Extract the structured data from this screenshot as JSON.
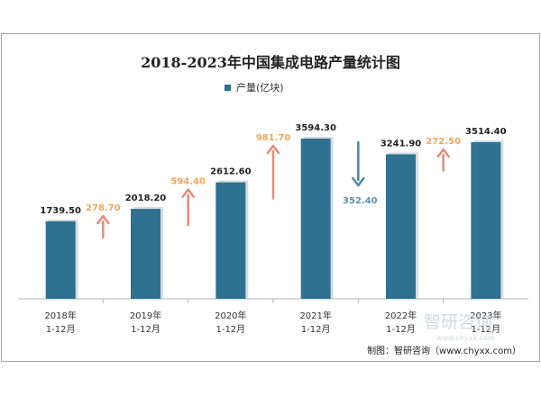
{
  "chart_data": {
    "type": "bar",
    "title": "2018-2023年中国集成电路产量统计图",
    "legend": {
      "label": "产量(亿块)",
      "position": "top-center"
    },
    "categories": [
      [
        "2018年",
        "1-12月"
      ],
      [
        "2019年",
        "1-12月"
      ],
      [
        "2020年",
        "1-12月"
      ],
      [
        "2021年",
        "1-12月"
      ],
      [
        "2022年",
        "1-12月"
      ],
      [
        "2023年",
        "1-12月"
      ]
    ],
    "series": [
      {
        "name": "产量(亿块)",
        "values": [
          1739.5,
          2018.2,
          2612.6,
          3594.3,
          3241.9,
          3514.4
        ]
      }
    ],
    "value_labels": [
      "1739.50",
      "2018.20",
      "2612.60",
      "3594.30",
      "3241.90",
      "3514.40"
    ],
    "changes": [
      {
        "between": [
          "2018年",
          "2019年"
        ],
        "value": 278.7,
        "label": "278.70",
        "direction": "up"
      },
      {
        "between": [
          "2019年",
          "2020年"
        ],
        "value": 594.4,
        "label": "594.40",
        "direction": "up"
      },
      {
        "between": [
          "2020年",
          "2021年"
        ],
        "value": 981.7,
        "label": "981.70",
        "direction": "up"
      },
      {
        "between": [
          "2021年",
          "2022年"
        ],
        "value": -352.4,
        "label": "352.40",
        "direction": "down"
      },
      {
        "between": [
          "2022年",
          "2023年"
        ],
        "value": 272.5,
        "label": "272.50",
        "direction": "up"
      }
    ],
    "ylim": [
      0,
      4200
    ],
    "grid": false,
    "xlabel": "",
    "ylabel": ""
  },
  "watermark_text": "智研咨询",
  "watermark_url": "www.chyxx.com",
  "source": "制图：智研咨询（www.chyxx.com）",
  "colors": {
    "bar": "#2f7190",
    "bar_shadow": "#b8c7d2",
    "up_arrow": "#e78b78",
    "up_label": "#f0a65c",
    "down_arrow": "#4f86a6",
    "down_label": "#5b93b4",
    "axis": "#b5b5b5",
    "title": "#222222",
    "text": "#333333"
  }
}
